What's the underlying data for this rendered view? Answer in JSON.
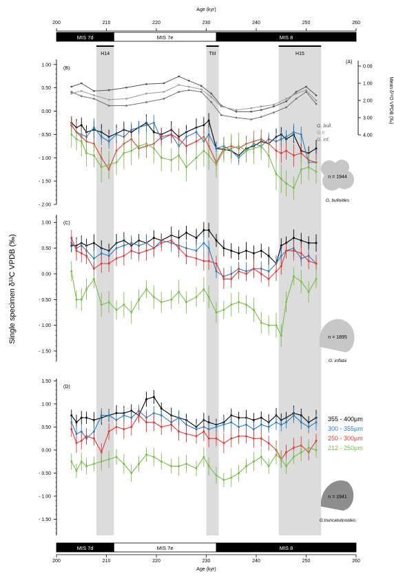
{
  "chart_data": {
    "type": "line",
    "x_axis": {
      "label": "Age (kyr)",
      "range": [
        200,
        260
      ],
      "ticks": [
        200,
        210,
        220,
        230,
        240,
        250,
        260
      ],
      "tick_labels": [
        "200",
        "210",
        "220",
        "230",
        "240",
        "250",
        "260"
      ]
    },
    "y_axis_label": "Single specimen δ¹³C VPDB (‰)",
    "right_axis": {
      "label": "Mean δ¹⁸O VPDB (‰)",
      "range": [
        0,
        4
      ],
      "reversed": true,
      "tick_labels": [
        "0.00",
        "1.00",
        "2.00",
        "3.00",
        "4.00"
      ]
    },
    "mis_stages": [
      {
        "label": "MIS 7d",
        "from": 200,
        "to": 211.5,
        "fill": "black"
      },
      {
        "label": "MIS 7e",
        "from": 211.5,
        "to": 232,
        "fill": "white"
      },
      {
        "label": "MIS 8",
        "from": 232,
        "to": 260,
        "fill": "black"
      }
    ],
    "events": [
      {
        "label": "H14",
        "from": 208,
        "to": 211.5
      },
      {
        "label": "TIII",
        "from": 230,
        "to": 232.5
      },
      {
        "label": "H15",
        "from": 244.5,
        "to": 253
      }
    ],
    "colors": {
      "355-400": "#000000",
      "300-355": "#2b7bba",
      "250-300": "#d93a3a",
      "212-250": "#7cb94e",
      "gbull": "#555555",
      "gtr": "#9a9a9a",
      "ginf": "#6f6f6f",
      "shade": "#dcdcdc"
    },
    "legend": [
      {
        "label": "355 - 400µm",
        "color": "#000000"
      },
      {
        "label": "300 - 355µm",
        "color": "#2b7bba"
      },
      {
        "label": "250 - 300µm",
        "color": "#d93a3a"
      },
      {
        "label": "212 - 250µm",
        "color": "#7cb94e"
      }
    ],
    "x": [
      203,
      204,
      205,
      206,
      207.5,
      209,
      210.5,
      212,
      213.5,
      215,
      216.5,
      218,
      219.5,
      221,
      223,
      224.5,
      226,
      228,
      229.5,
      230.5,
      232,
      233.5,
      235,
      236.5,
      238,
      239.5,
      241,
      242.5,
      244,
      245,
      246,
      247.5,
      249,
      250.5,
      252
    ],
    "panels": [
      {
        "tag": "(B)",
        "species": "G. bulloides",
        "n_label": "n = 1944",
        "y_ticks": [
          1.0,
          0.5,
          0.0,
          -0.5,
          -1.0,
          -1.5,
          -2.0
        ],
        "y_tick_labels": [
          "1.00",
          "0.50",
          "0.00",
          "- 0.50",
          "- 1.00",
          "- 1.50",
          "- 2.00"
        ],
        "y_range": [
          -2.0,
          1.1
        ],
        "series": [
          {
            "name": "355 - 400µm",
            "color": "#000000",
            "err": 0.2,
            "values": [
              -0.25,
              -0.35,
              -0.3,
              -0.45,
              -0.4,
              -0.45,
              -0.55,
              -0.48,
              -0.4,
              -0.45,
              -0.35,
              -0.25,
              -0.45,
              -0.5,
              -0.4,
              -0.55,
              -0.45,
              -0.35,
              -0.3,
              -0.2,
              -0.8,
              -0.82,
              -0.85,
              -0.95,
              -0.8,
              -0.75,
              -0.65,
              -0.7,
              -0.55,
              -0.5,
              -0.6,
              -0.5,
              -0.85,
              -0.9,
              -0.8
            ]
          },
          {
            "name": "300 - 355µm",
            "color": "#2b7bba",
            "err": 0.2,
            "values": [
              -0.3,
              -0.45,
              -0.5,
              -0.55,
              -0.35,
              -0.55,
              -0.65,
              -0.5,
              -0.55,
              -0.4,
              -0.35,
              -0.3,
              -0.25,
              -0.6,
              -0.5,
              -0.75,
              -0.55,
              -0.45,
              -0.65,
              -0.5,
              -0.8,
              -0.75,
              -0.85,
              -1.0,
              -0.85,
              -0.7,
              -0.75,
              -0.6,
              -0.65,
              -0.6,
              -0.55,
              -0.45,
              -0.5,
              -1.1,
              -1.1
            ]
          },
          {
            "name": "250 - 300µm",
            "color": "#d93a3a",
            "err": 0.25,
            "values": [
              -0.3,
              -0.45,
              -0.55,
              -0.65,
              -0.7,
              -1.0,
              -1.25,
              -0.85,
              -0.7,
              -0.6,
              -0.8,
              -0.75,
              -0.7,
              -0.55,
              -0.5,
              -0.6,
              -0.75,
              -0.65,
              -0.55,
              -0.75,
              -1.1,
              -0.8,
              -0.75,
              -0.8,
              -0.7,
              -0.65,
              -0.6,
              -0.7,
              -0.85,
              -0.9,
              -0.85,
              -0.95,
              -0.9,
              -1.05,
              -1.1
            ]
          },
          {
            "name": "212 - 250µm",
            "color": "#7cb94e",
            "err": 0.35,
            "values": [
              -0.5,
              -0.6,
              -0.65,
              -0.9,
              -0.95,
              -1.2,
              -1.15,
              -1.1,
              -0.9,
              -0.85,
              -0.75,
              -0.7,
              -0.8,
              -1.0,
              -1.05,
              -0.95,
              -1.2,
              -1.0,
              -0.85,
              -0.95,
              -1.15,
              -0.85,
              -0.8,
              -0.75,
              -0.85,
              -0.8,
              -0.75,
              -0.95,
              -1.35,
              -1.45,
              -1.55,
              -1.65,
              -1.25,
              -1.2,
              -1.3
            ]
          }
        ],
        "d18o_x": [
          203,
          205,
          207.5,
          210.5,
          214,
          218,
          221.5,
          224.5,
          226.5,
          229,
          231,
          233,
          236,
          239,
          241,
          243.5,
          246,
          248,
          250,
          252
        ],
        "d18o_series": [
          {
            "name": "G. bull.",
            "color": "#555555",
            "values": [
              1.2,
              1.0,
              1.45,
              1.4,
              1.25,
              1.05,
              1.0,
              0.6,
              0.85,
              1.15,
              1.6,
              2.3,
              2.65,
              2.65,
              2.55,
              2.35,
              2.05,
              1.5,
              1.2,
              1.7
            ]
          },
          {
            "name": "G.tr.",
            "color": "#9a9a9a",
            "values": [
              1.6,
              1.45,
              1.7,
              1.95,
              1.9,
              1.6,
              1.5,
              1.1,
              1.2,
              1.35,
              1.8,
              2.35,
              2.55,
              2.45,
              2.35,
              2.25,
              1.9,
              1.6,
              1.4,
              2.0
            ]
          },
          {
            "name": "G. inf.",
            "color": "#6f6f6f",
            "values": [
              1.5,
              1.75,
              1.9,
              2.3,
              2.3,
              2.1,
              1.9,
              1.5,
              1.4,
              1.5,
              2.1,
              2.85,
              3.0,
              3.1,
              2.95,
              2.7,
              2.4,
              1.9,
              1.5,
              2.2
            ]
          }
        ]
      },
      {
        "tag": "(C)",
        "species": "G. inflata",
        "n_label": "n = 1895",
        "y_ticks": [
          1.0,
          0.5,
          0.0,
          -0.5,
          -1.0,
          -1.5
        ],
        "y_tick_labels": [
          "1.00",
          "0.50",
          "0.00",
          "- 0.50",
          "- 1.00",
          "- 1.50"
        ],
        "y_range": [
          -1.7,
          1.15
        ],
        "series": [
          {
            "name": "355 - 400µm",
            "color": "#000000",
            "err": 0.18,
            "values": [
              0.55,
              0.55,
              0.6,
              0.55,
              0.6,
              0.5,
              0.45,
              0.6,
              0.65,
              0.55,
              0.65,
              0.6,
              0.7,
              0.65,
              0.75,
              0.7,
              0.8,
              0.7,
              0.85,
              0.85,
              0.65,
              0.5,
              0.45,
              0.4,
              0.45,
              0.4,
              0.45,
              0.35,
              0.2,
              0.55,
              0.6,
              0.7,
              0.65,
              0.6,
              0.6
            ]
          },
          {
            "name": "300 - 355µm",
            "color": "#2b7bba",
            "err": 0.18,
            "values": [
              0.6,
              0.5,
              0.55,
              0.45,
              0.3,
              0.4,
              0.35,
              0.5,
              0.55,
              0.6,
              0.55,
              0.6,
              0.5,
              0.65,
              0.6,
              0.55,
              0.5,
              0.45,
              0.6,
              0.5,
              0.05,
              -0.05,
              0.0,
              0.1,
              0.05,
              0.1,
              0.1,
              0.05,
              0.2,
              0.35,
              0.45,
              0.5,
              0.3,
              0.35,
              0.2
            ]
          },
          {
            "name": "250 - 300µm",
            "color": "#d93a3a",
            "err": 0.2,
            "values": [
              0.7,
              0.45,
              0.4,
              0.35,
              0.1,
              0.2,
              0.2,
              0.3,
              0.35,
              0.45,
              0.4,
              0.45,
              0.5,
              0.6,
              0.65,
              0.5,
              0.35,
              0.3,
              0.25,
              0.25,
              0.2,
              -0.1,
              -0.1,
              0.05,
              0.0,
              0.1,
              0.0,
              -0.1,
              0.05,
              0.15,
              0.45,
              0.45,
              0.4,
              0.25,
              0.2
            ]
          },
          {
            "name": "212 - 250µm",
            "color": "#7cb94e",
            "err": 0.25,
            "values": [
              0.05,
              -0.5,
              -0.5,
              -0.3,
              -0.1,
              -0.6,
              -0.55,
              -0.7,
              -0.6,
              -0.75,
              -0.5,
              -0.3,
              -0.45,
              -0.55,
              -0.5,
              -0.35,
              -0.55,
              -0.45,
              -0.3,
              -0.45,
              -0.75,
              -0.7,
              -0.6,
              -0.55,
              -0.6,
              -0.7,
              -0.95,
              -1.0,
              -1.0,
              -1.2,
              -0.55,
              -0.05,
              -0.15,
              -0.35,
              -0.1
            ]
          }
        ]
      },
      {
        "tag": "(D)",
        "species": "G.truncatulinoides",
        "n_label": "n = 1941",
        "y_ticks": [
          1.5,
          1.0,
          0.5,
          0.0,
          -0.5,
          -1.0,
          -1.5
        ],
        "y_tick_labels": [
          "1.50",
          "1.00",
          "0.50",
          "0.00",
          "- 0.50",
          "- 1.00",
          "- 1.50"
        ],
        "y_range": [
          -1.85,
          1.55
        ],
        "series": [
          {
            "name": "355 - 400µm",
            "color": "#000000",
            "err": 0.18,
            "values": [
              0.75,
              0.6,
              0.7,
              0.7,
              0.65,
              0.7,
              0.75,
              0.8,
              0.8,
              0.85,
              0.75,
              1.1,
              1.15,
              0.9,
              0.75,
              0.7,
              0.65,
              0.5,
              0.65,
              0.6,
              0.55,
              0.6,
              0.75,
              0.7,
              0.7,
              0.65,
              0.7,
              0.6,
              0.75,
              0.65,
              0.7,
              0.8,
              0.75,
              0.6,
              0.7
            ]
          },
          {
            "name": "300 - 355µm",
            "color": "#2b7bba",
            "err": 0.18,
            "values": [
              0.6,
              0.35,
              0.4,
              0.25,
              0.4,
              0.75,
              0.75,
              0.65,
              0.75,
              0.7,
              0.85,
              0.7,
              0.8,
              0.75,
              0.6,
              0.7,
              0.55,
              0.45,
              0.5,
              0.45,
              0.5,
              0.55,
              0.6,
              0.5,
              0.55,
              0.45,
              0.55,
              0.5,
              0.6,
              0.55,
              0.6,
              0.75,
              0.6,
              0.5,
              0.6
            ]
          },
          {
            "name": "250 - 300µm",
            "color": "#d93a3a",
            "err": 0.22,
            "values": [
              0.45,
              0.15,
              0.2,
              0.3,
              0.25,
              -0.05,
              0.4,
              0.5,
              0.45,
              0.5,
              0.75,
              0.6,
              0.6,
              0.5,
              0.55,
              0.4,
              0.35,
              0.3,
              0.4,
              0.25,
              0.25,
              0.15,
              0.25,
              0.3,
              0.3,
              0.25,
              0.25,
              0.15,
              0.0,
              -0.2,
              -0.05,
              0.05,
              0.1,
              -0.05,
              0.2
            ]
          },
          {
            "name": "212 - 250µm",
            "color": "#7cb94e",
            "err": 0.22,
            "values": [
              -0.25,
              -0.45,
              -0.25,
              -0.35,
              -0.3,
              -0.25,
              -0.2,
              -0.15,
              -0.3,
              -0.5,
              -0.3,
              -0.1,
              -0.15,
              -0.25,
              -0.35,
              -0.35,
              -0.3,
              -0.4,
              -0.15,
              -0.35,
              -0.55,
              -0.65,
              -0.6,
              -0.5,
              -0.35,
              -0.25,
              -0.15,
              -0.35,
              -0.1,
              -0.2,
              -0.35,
              -0.15,
              -0.05,
              0.05,
              0.0
            ]
          }
        ]
      }
    ]
  }
}
